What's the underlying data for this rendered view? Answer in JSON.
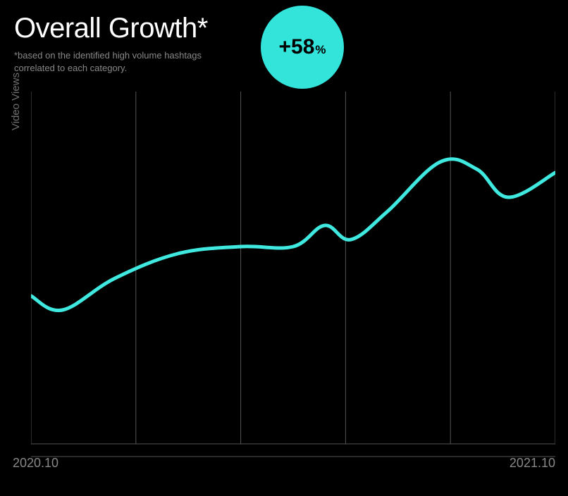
{
  "header": {
    "title": "Overall Growth*",
    "subtitle_line1": "*based on the identified high volume hashtags",
    "subtitle_line2": "correlated to each category."
  },
  "badge": {
    "value": "+58",
    "suffix": "%",
    "bg_color": "#33e4db",
    "text_color": "#000000"
  },
  "y_axis": {
    "label": "Video Views",
    "label_color": "#707070",
    "label_fontsize": 15
  },
  "x_axis": {
    "start_label": "2020.10",
    "end_label": "2021.10",
    "label_color": "#888888",
    "label_fontsize": 18
  },
  "chart": {
    "type": "line",
    "background_color": "#000000",
    "grid_color": "#555555",
    "grid_vertical_count": 6,
    "xlim": [
      0,
      1
    ],
    "ylim": [
      0,
      1
    ],
    "line_color": "#40e9e0",
    "line_width": 5,
    "points": [
      {
        "x": 0.0,
        "y": 0.42
      },
      {
        "x": 0.06,
        "y": 0.38
      },
      {
        "x": 0.16,
        "y": 0.47
      },
      {
        "x": 0.28,
        "y": 0.54
      },
      {
        "x": 0.4,
        "y": 0.56
      },
      {
        "x": 0.5,
        "y": 0.56
      },
      {
        "x": 0.56,
        "y": 0.62
      },
      {
        "x": 0.61,
        "y": 0.58
      },
      {
        "x": 0.68,
        "y": 0.66
      },
      {
        "x": 0.78,
        "y": 0.8
      },
      {
        "x": 0.85,
        "y": 0.78
      },
      {
        "x": 0.91,
        "y": 0.7
      },
      {
        "x": 1.0,
        "y": 0.77
      }
    ]
  },
  "colors": {
    "bg": "#000000",
    "title": "#ffffff",
    "subtitle": "#888888"
  }
}
